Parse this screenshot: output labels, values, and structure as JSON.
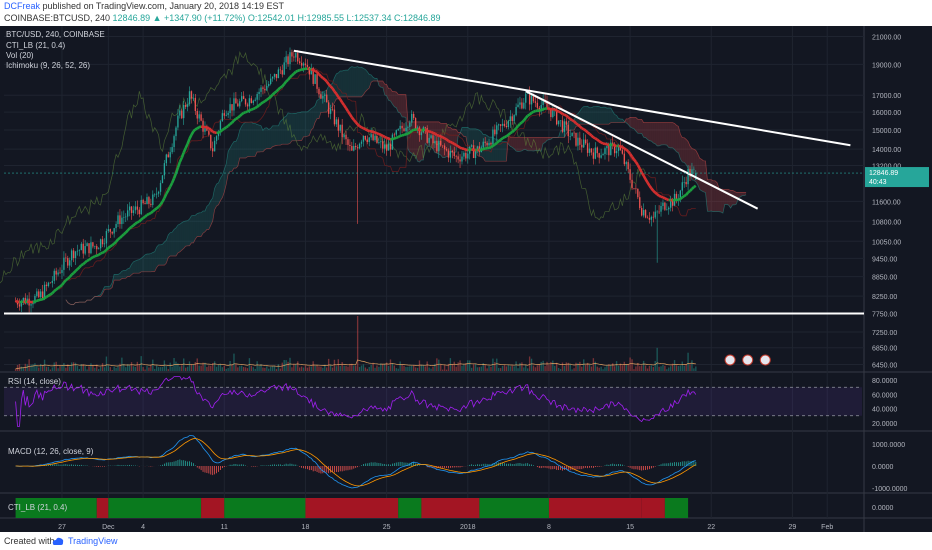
{
  "header": {
    "author": "DCFreak",
    "published": "published on TradingView.com, January 20, 2018 14:19 EST",
    "symbol_line": "COINBASE:BTCUSD, 240",
    "change": "12846.89 ▲ +1347.90 (+11.72%)",
    "ohlc": "O:12542.01 H:12985.55 L:12537.34 C:12846.89"
  },
  "legend": {
    "title": "BTC/USD, 240, COINBASE",
    "items": [
      "CTI_LB (21, 0.4)",
      "Vol (20)",
      "Ichimoku (9, 26, 52, 26)"
    ]
  },
  "footer": {
    "created": "Created with",
    "brand": "TradingView"
  },
  "colors": {
    "up": "#26a69a",
    "down": "#ef5350",
    "background": "#131722",
    "rsi": "#a020f0",
    "macd": "#2196f3",
    "signal": "#ff9800"
  },
  "chart_data": [
    {
      "type": "candlestick",
      "title": "BTC/USD, 240, COINBASE",
      "yticks": [
        21000,
        19000,
        17000,
        16000,
        15000,
        14000,
        13200,
        11600,
        10800,
        10050,
        9450,
        8850,
        8250,
        7750,
        7250,
        6850,
        6450
      ],
      "ylim": [
        6300,
        21500
      ],
      "log_scale": true,
      "last_price": "12846.89",
      "countdown": "40:43",
      "xticks": [
        "27",
        "Dec",
        "4",
        "11",
        "18",
        "25",
        "2018",
        "8",
        "15",
        "22",
        "29",
        "Feb"
      ],
      "close_path": [
        [
          "2017-11-23",
          8100
        ],
        [
          "2017-11-25",
          8200
        ],
        [
          "2017-11-28",
          9700
        ],
        [
          "2017-11-30",
          9900
        ],
        [
          "2017-12-02",
          10900
        ],
        [
          "2017-12-05",
          11700
        ],
        [
          "2017-12-07",
          15500
        ],
        [
          "2017-12-08",
          17000
        ],
        [
          "2017-12-10",
          14000
        ],
        [
          "2017-12-11",
          16200
        ],
        [
          "2017-12-13",
          16700
        ],
        [
          "2017-12-15",
          17800
        ],
        [
          "2017-12-17",
          19800
        ],
        [
          "2017-12-18",
          19200
        ],
        [
          "2017-12-20",
          16200
        ],
        [
          "2017-12-22",
          13800
        ],
        [
          "2017-12-23",
          14800
        ],
        [
          "2017-12-25",
          14000
        ],
        [
          "2017-12-27",
          15700
        ],
        [
          "2017-12-29",
          14300
        ],
        [
          "2017-12-31",
          13600
        ],
        [
          "2018-01-02",
          14000
        ],
        [
          "2018-01-04",
          15200
        ],
        [
          "2018-01-06",
          16900
        ],
        [
          "2018-01-08",
          16200
        ],
        [
          "2018-01-10",
          14600
        ],
        [
          "2018-01-12",
          13800
        ],
        [
          "2018-01-14",
          14100
        ],
        [
          "2018-01-16",
          11300
        ],
        [
          "2018-01-17",
          10900
        ],
        [
          "2018-01-18",
          11500
        ],
        [
          "2018-01-19",
          11700
        ],
        [
          "2018-01-20",
          12847
        ]
      ],
      "hlines": [
        7750
      ]
    },
    {
      "type": "bar",
      "title": "Vol (20)",
      "note": "volume histogram"
    },
    {
      "type": "line",
      "title": "RSI (14, close)",
      "yticks": [
        "80.0000",
        "60.0000",
        "40.0000",
        "20.0000"
      ],
      "ylim": [
        10,
        90
      ],
      "bands": [
        70,
        30
      ]
    },
    {
      "type": "line",
      "title": "MACD (12, 26, close, 9)",
      "yticks": [
        "1000.0000",
        "0.0000",
        "-1000.0000"
      ],
      "series": [
        {
          "name": "MACD"
        },
        {
          "name": "Signal"
        }
      ]
    },
    {
      "type": "heatmap",
      "title": "CTI_LB (21, 0.4)",
      "yticks": [
        "0.0000"
      ],
      "segments": [
        {
          "from": "2017-11-23",
          "to": "2017-11-30",
          "state": "up"
        },
        {
          "from": "2017-11-30",
          "to": "2017-12-01",
          "state": "down"
        },
        {
          "from": "2017-12-01",
          "to": "2017-12-09",
          "state": "up"
        },
        {
          "from": "2017-12-09",
          "to": "2017-12-11",
          "state": "down"
        },
        {
          "from": "2017-12-11",
          "to": "2017-12-18",
          "state": "up"
        },
        {
          "from": "2017-12-18",
          "to": "2017-12-26",
          "state": "down"
        },
        {
          "from": "2017-12-26",
          "to": "2017-12-28",
          "state": "up"
        },
        {
          "from": "2017-12-28",
          "to": "2018-01-02",
          "state": "down"
        },
        {
          "from": "2018-01-02",
          "to": "2018-01-08",
          "state": "up"
        },
        {
          "from": "2018-01-08",
          "to": "2018-01-16",
          "state": "down"
        },
        {
          "from": "2018-01-16",
          "to": "2018-01-18",
          "state": "down"
        },
        {
          "from": "2018-01-18",
          "to": "2018-01-20",
          "state": "up"
        }
      ]
    }
  ]
}
